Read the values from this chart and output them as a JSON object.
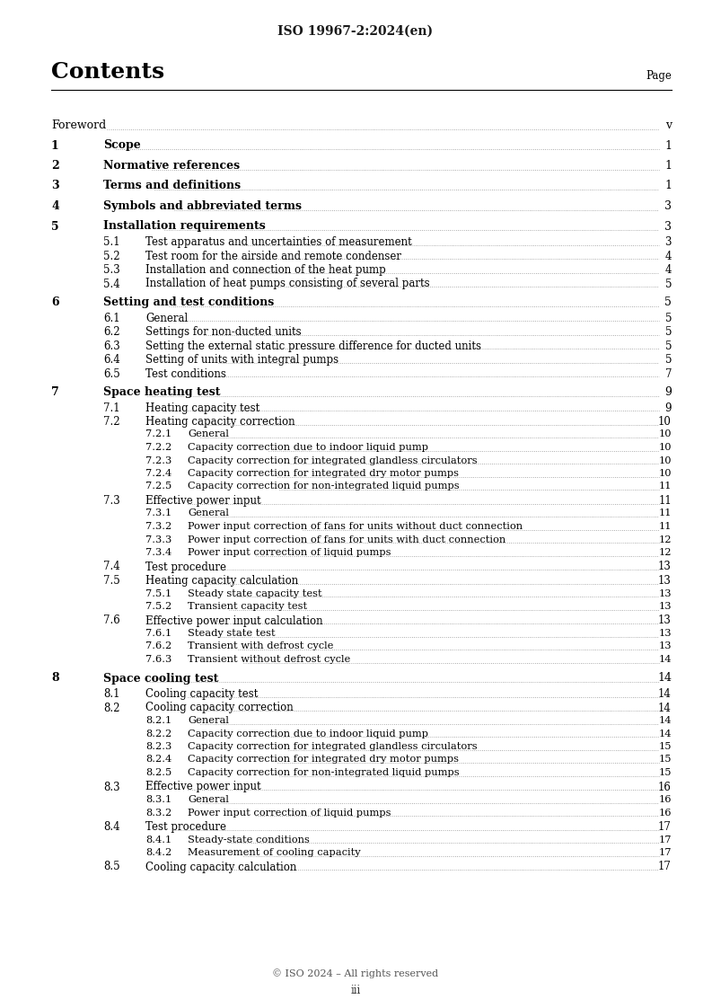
{
  "header": "ISO 19967-2:2024(en)",
  "title": "Contents",
  "page_label": "Page",
  "bg_color": "#ffffff",
  "text_color": "#000000",
  "entries": [
    {
      "level": 0,
      "num": "Foreword",
      "title": "",
      "page": "v",
      "bold": false,
      "gap_before": true
    },
    {
      "level": 0,
      "num": "1",
      "title": "Scope",
      "page": "1",
      "bold": true,
      "gap_before": true
    },
    {
      "level": 0,
      "num": "2",
      "title": "Normative references",
      "page": "1",
      "bold": true,
      "gap_before": true
    },
    {
      "level": 0,
      "num": "3",
      "title": "Terms and definitions",
      "page": "1",
      "bold": true,
      "gap_before": true
    },
    {
      "level": 0,
      "num": "4",
      "title": "Symbols and abbreviated terms",
      "page": "3",
      "bold": true,
      "gap_before": true
    },
    {
      "level": 0,
      "num": "5",
      "title": "Installation requirements",
      "page": "3",
      "bold": true,
      "gap_before": true
    },
    {
      "level": 1,
      "num": "5.1",
      "title": "Test apparatus and uncertainties of measurement",
      "page": "3",
      "bold": false,
      "gap_before": false
    },
    {
      "level": 1,
      "num": "5.2",
      "title": "Test room for the airside and remote condenser",
      "page": "4",
      "bold": false,
      "gap_before": false
    },
    {
      "level": 1,
      "num": "5.3",
      "title": "Installation and connection of the heat pump",
      "page": "4",
      "bold": false,
      "gap_before": false
    },
    {
      "level": 1,
      "num": "5.4",
      "title": "Installation of heat pumps consisting of several parts",
      "page": "5",
      "bold": false,
      "gap_before": false
    },
    {
      "level": 0,
      "num": "6",
      "title": "Setting and test conditions",
      "page": "5",
      "bold": true,
      "gap_before": true
    },
    {
      "level": 1,
      "num": "6.1",
      "title": "General",
      "page": "5",
      "bold": false,
      "gap_before": false
    },
    {
      "level": 1,
      "num": "6.2",
      "title": "Settings for non-ducted units",
      "page": "5",
      "bold": false,
      "gap_before": false
    },
    {
      "level": 1,
      "num": "6.3",
      "title": "Setting the external static pressure difference for ducted units",
      "page": "5",
      "bold": false,
      "gap_before": false
    },
    {
      "level": 1,
      "num": "6.4",
      "title": "Setting of units with integral pumps",
      "page": "5",
      "bold": false,
      "gap_before": false
    },
    {
      "level": 1,
      "num": "6.5",
      "title": "Test conditions",
      "page": "7",
      "bold": false,
      "gap_before": false
    },
    {
      "level": 0,
      "num": "7",
      "title": "Space heating test",
      "page": "9",
      "bold": true,
      "gap_before": true
    },
    {
      "level": 1,
      "num": "7.1",
      "title": "Heating capacity test",
      "page": "9",
      "bold": false,
      "gap_before": false
    },
    {
      "level": 1,
      "num": "7.2",
      "title": "Heating capacity correction",
      "page": "10",
      "bold": false,
      "gap_before": false
    },
    {
      "level": 2,
      "num": "7.2.1",
      "title": "General",
      "page": "10",
      "bold": false,
      "gap_before": false
    },
    {
      "level": 2,
      "num": "7.2.2",
      "title": "Capacity correction due to indoor liquid pump",
      "page": "10",
      "bold": false,
      "gap_before": false
    },
    {
      "level": 2,
      "num": "7.2.3",
      "title": "Capacity correction for integrated glandless circulators",
      "page": "10",
      "bold": false,
      "gap_before": false
    },
    {
      "level": 2,
      "num": "7.2.4",
      "title": "Capacity correction for integrated dry motor pumps",
      "page": "10",
      "bold": false,
      "gap_before": false
    },
    {
      "level": 2,
      "num": "7.2.5",
      "title": "Capacity correction for non-integrated liquid pumps",
      "page": "11",
      "bold": false,
      "gap_before": false
    },
    {
      "level": 1,
      "num": "7.3",
      "title": "Effective power input",
      "page": "11",
      "bold": false,
      "gap_before": false
    },
    {
      "level": 2,
      "num": "7.3.1",
      "title": "General",
      "page": "11",
      "bold": false,
      "gap_before": false
    },
    {
      "level": 2,
      "num": "7.3.2",
      "title": "Power input correction of fans for units without duct connection",
      "page": "11",
      "bold": false,
      "gap_before": false
    },
    {
      "level": 2,
      "num": "7.3.3",
      "title": "Power input correction of fans for units with duct connection",
      "page": "12",
      "bold": false,
      "gap_before": false
    },
    {
      "level": 2,
      "num": "7.3.4",
      "title": "Power input correction of liquid pumps",
      "page": "12",
      "bold": false,
      "gap_before": false
    },
    {
      "level": 1,
      "num": "7.4",
      "title": "Test procedure",
      "page": "13",
      "bold": false,
      "gap_before": false
    },
    {
      "level": 1,
      "num": "7.5",
      "title": "Heating capacity calculation",
      "page": "13",
      "bold": false,
      "gap_before": false
    },
    {
      "level": 2,
      "num": "7.5.1",
      "title": "Steady state capacity test",
      "page": "13",
      "bold": false,
      "gap_before": false
    },
    {
      "level": 2,
      "num": "7.5.2",
      "title": "Transient capacity test",
      "page": "13",
      "bold": false,
      "gap_before": false
    },
    {
      "level": 1,
      "num": "7.6",
      "title": "Effective power input calculation",
      "page": "13",
      "bold": false,
      "gap_before": false
    },
    {
      "level": 2,
      "num": "7.6.1",
      "title": "Steady state test",
      "page": "13",
      "bold": false,
      "gap_before": false
    },
    {
      "level": 2,
      "num": "7.6.2",
      "title": "Transient with defrost cycle",
      "page": "13",
      "bold": false,
      "gap_before": false
    },
    {
      "level": 2,
      "num": "7.6.3",
      "title": "Transient without defrost cycle",
      "page": "14",
      "bold": false,
      "gap_before": false
    },
    {
      "level": 0,
      "num": "8",
      "title": "Space cooling test",
      "page": "14",
      "bold": true,
      "gap_before": true
    },
    {
      "level": 1,
      "num": "8.1",
      "title": "Cooling capacity test",
      "page": "14",
      "bold": false,
      "gap_before": false
    },
    {
      "level": 1,
      "num": "8.2",
      "title": "Cooling capacity correction",
      "page": "14",
      "bold": false,
      "gap_before": false
    },
    {
      "level": 2,
      "num": "8.2.1",
      "title": "General",
      "page": "14",
      "bold": false,
      "gap_before": false
    },
    {
      "level": 2,
      "num": "8.2.2",
      "title": "Capacity correction due to indoor liquid pump",
      "page": "14",
      "bold": false,
      "gap_before": false
    },
    {
      "level": 2,
      "num": "8.2.3",
      "title": "Capacity correction for integrated glandless circulators",
      "page": "15",
      "bold": false,
      "gap_before": false
    },
    {
      "level": 2,
      "num": "8.2.4",
      "title": "Capacity correction for integrated dry motor pumps",
      "page": "15",
      "bold": false,
      "gap_before": false
    },
    {
      "level": 2,
      "num": "8.2.5",
      "title": "Capacity correction for non-integrated liquid pumps",
      "page": "15",
      "bold": false,
      "gap_before": false
    },
    {
      "level": 1,
      "num": "8.3",
      "title": "Effective power input",
      "page": "16",
      "bold": false,
      "gap_before": false
    },
    {
      "level": 2,
      "num": "8.3.1",
      "title": "General",
      "page": "16",
      "bold": false,
      "gap_before": false
    },
    {
      "level": 2,
      "num": "8.3.2",
      "title": "Power input correction of liquid pumps",
      "page": "16",
      "bold": false,
      "gap_before": false
    },
    {
      "level": 1,
      "num": "8.4",
      "title": "Test procedure",
      "page": "17",
      "bold": false,
      "gap_before": false
    },
    {
      "level": 2,
      "num": "8.4.1",
      "title": "Steady-state conditions",
      "page": "17",
      "bold": false,
      "gap_before": false
    },
    {
      "level": 2,
      "num": "8.4.2",
      "title": "Measurement of cooling capacity",
      "page": "17",
      "bold": false,
      "gap_before": false
    },
    {
      "level": 1,
      "num": "8.5",
      "title": "Cooling capacity calculation",
      "page": "17",
      "bold": false,
      "gap_before": false
    }
  ]
}
